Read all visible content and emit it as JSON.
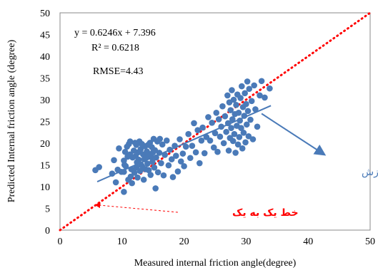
{
  "chart_data": {
    "type": "scatter",
    "xlabel": "Measured internal friction angle(degree)",
    "ylabel": "Predicted Internal friction angle (degree)",
    "xlim": [
      0,
      50
    ],
    "ylim": [
      0,
      50
    ],
    "x_ticks": [
      "0",
      "10",
      "20",
      "30",
      "40",
      "50"
    ],
    "y_ticks": [
      "0",
      "5",
      "10",
      "15",
      "20",
      "25",
      "30",
      "35",
      "40",
      "45",
      "50"
    ],
    "grid": false,
    "colors": {
      "points": "#4a7ab8",
      "fit_line": "#4a7ab8",
      "one_to_one": "#ff0000"
    },
    "stats": {
      "equation": "y = 0.6246x + 7.396",
      "r2": "R² = 0.6218",
      "rmse": "RMSE=4.43"
    },
    "fit_line": {
      "slope": 0.6246,
      "intercept": 7.396,
      "x_range": [
        6,
        34
      ]
    },
    "one_to_one": {
      "x_range": [
        0,
        50
      ]
    },
    "annotations": {
      "best_fit": "بهترین برازش",
      "one_to_one": "خط یک به یک"
    },
    "points": [
      [
        5.7,
        13.8
      ],
      [
        6.3,
        14.5
      ],
      [
        8.4,
        13.0
      ],
      [
        8.7,
        16.1
      ],
      [
        9.0,
        11.0
      ],
      [
        9.3,
        13.9
      ],
      [
        9.5,
        18.8
      ],
      [
        9.9,
        13.4
      ],
      [
        10.3,
        8.8
      ],
      [
        10.3,
        13.4
      ],
      [
        10.3,
        16.0
      ],
      [
        10.4,
        15.0
      ],
      [
        10.5,
        18.0
      ],
      [
        10.6,
        14.7
      ],
      [
        10.8,
        19.2
      ],
      [
        10.9,
        16.9
      ],
      [
        11.0,
        11.6
      ],
      [
        11.1,
        19.8
      ],
      [
        11.3,
        20.4
      ],
      [
        11.3,
        17.4
      ],
      [
        11.4,
        12.3
      ],
      [
        11.5,
        14.0
      ],
      [
        11.6,
        10.8
      ],
      [
        11.7,
        16.7
      ],
      [
        11.9,
        18.3
      ],
      [
        12.0,
        13.2
      ],
      [
        12.1,
        20.1
      ],
      [
        12.2,
        17.0
      ],
      [
        12.3,
        14.4
      ],
      [
        12.3,
        19.6
      ],
      [
        12.4,
        15.6
      ],
      [
        12.5,
        12.1
      ],
      [
        12.6,
        17.9
      ],
      [
        12.7,
        16.2
      ],
      [
        12.8,
        20.4
      ],
      [
        12.9,
        13.6
      ],
      [
        13.0,
        18.6
      ],
      [
        13.1,
        15.0
      ],
      [
        13.2,
        19.8
      ],
      [
        13.3,
        14.5
      ],
      [
        13.4,
        17.4
      ],
      [
        13.5,
        11.6
      ],
      [
        13.6,
        16.3
      ],
      [
        13.7,
        19.3
      ],
      [
        13.8,
        14.0
      ],
      [
        13.9,
        16.9
      ],
      [
        14.0,
        18.1
      ],
      [
        14.1,
        15.3
      ],
      [
        14.2,
        19.6
      ],
      [
        14.3,
        13.8
      ],
      [
        14.4,
        17.5
      ],
      [
        14.5,
        20.1
      ],
      [
        14.6,
        12.7
      ],
      [
        14.7,
        16.8
      ],
      [
        14.8,
        19.1
      ],
      [
        14.9,
        15.7
      ],
      [
        15.0,
        17.9
      ],
      [
        15.1,
        21.0
      ],
      [
        15.2,
        14.4
      ],
      [
        15.3,
        18.4
      ],
      [
        15.4,
        9.6
      ],
      [
        15.5,
        16.7
      ],
      [
        15.7,
        20.4
      ],
      [
        15.8,
        13.3
      ],
      [
        16.0,
        17.8
      ],
      [
        16.1,
        21.0
      ],
      [
        16.3,
        15.4
      ],
      [
        16.5,
        19.7
      ],
      [
        16.7,
        12.6
      ],
      [
        16.9,
        17.3
      ],
      [
        17.2,
        20.6
      ],
      [
        17.5,
        14.9
      ],
      [
        17.7,
        18.5
      ],
      [
        18.0,
        16.3
      ],
      [
        18.2,
        12.2
      ],
      [
        18.5,
        19.4
      ],
      [
        18.7,
        17.1
      ],
      [
        19.0,
        13.5
      ],
      [
        19.3,
        20.9
      ],
      [
        19.5,
        15.8
      ],
      [
        19.8,
        17.6
      ],
      [
        20.0,
        14.7
      ],
      [
        20.3,
        19.2
      ],
      [
        20.7,
        22.1
      ],
      [
        21.0,
        16.6
      ],
      [
        21.3,
        19.4
      ],
      [
        21.6,
        24.6
      ],
      [
        21.9,
        17.9
      ],
      [
        22.2,
        23.0
      ],
      [
        22.5,
        15.4
      ],
      [
        22.8,
        20.6
      ],
      [
        23.0,
        23.6
      ],
      [
        23.3,
        17.7
      ],
      [
        23.6,
        21.4
      ],
      [
        23.9,
        26.0
      ],
      [
        24.2,
        20.6
      ],
      [
        24.5,
        24.7
      ],
      [
        24.8,
        19.0
      ],
      [
        25.0,
        22.3
      ],
      [
        25.2,
        27.0
      ],
      [
        25.4,
        18.0
      ],
      [
        25.6,
        25.5
      ],
      [
        25.8,
        21.5
      ],
      [
        26.0,
        23.8
      ],
      [
        26.2,
        28.5
      ],
      [
        26.4,
        20.0
      ],
      [
        26.6,
        26.2
      ],
      [
        26.8,
        22.6
      ],
      [
        27.0,
        31.0
      ],
      [
        27.1,
        24.6
      ],
      [
        27.2,
        18.3
      ],
      [
        27.3,
        29.4
      ],
      [
        27.4,
        21.2
      ],
      [
        27.5,
        27.6
      ],
      [
        27.6,
        23.5
      ],
      [
        27.7,
        32.2
      ],
      [
        27.8,
        25.5
      ],
      [
        27.9,
        20.5
      ],
      [
        28.0,
        30.0
      ],
      [
        28.1,
        22.1
      ],
      [
        28.2,
        26.7
      ],
      [
        28.3,
        17.8
      ],
      [
        28.4,
        28.8
      ],
      [
        28.5,
        24.0
      ],
      [
        28.6,
        31.2
      ],
      [
        28.7,
        19.7
      ],
      [
        28.8,
        27.0
      ],
      [
        28.9,
        21.4
      ],
      [
        29.0,
        25.2
      ],
      [
        29.1,
        30.4
      ],
      [
        29.2,
        23.5
      ],
      [
        29.3,
        33.1
      ],
      [
        29.4,
        18.8
      ],
      [
        29.5,
        28.3
      ],
      [
        29.6,
        22.4
      ],
      [
        29.7,
        26.3
      ],
      [
        29.8,
        31.5
      ],
      [
        29.9,
        20.2
      ],
      [
        30.0,
        29.0
      ],
      [
        30.1,
        24.3
      ],
      [
        30.2,
        34.2
      ],
      [
        30.3,
        27.4
      ],
      [
        30.4,
        21.6
      ],
      [
        30.5,
        32.5
      ],
      [
        30.7,
        25.4
      ],
      [
        30.9,
        29.7
      ],
      [
        31.1,
        20.9
      ],
      [
        31.3,
        33.3
      ],
      [
        31.5,
        27.8
      ],
      [
        31.8,
        23.8
      ],
      [
        32.2,
        31.0
      ],
      [
        32.5,
        34.3
      ],
      [
        33.0,
        30.5
      ],
      [
        33.8,
        32.6
      ]
    ]
  }
}
